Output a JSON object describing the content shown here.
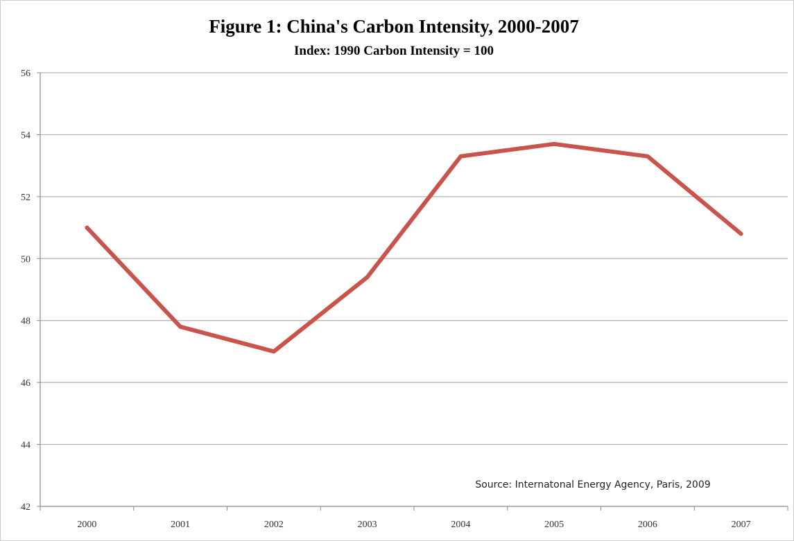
{
  "chart_data": {
    "type": "line",
    "title": "Figure 1: China's Carbon Intensity, 2000-2007",
    "subtitle": "Index: 1990 Carbon Intensity = 100",
    "xlabel": "",
    "ylabel": "",
    "categories": [
      "2000",
      "2001",
      "2002",
      "2003",
      "2004",
      "2005",
      "2006",
      "2007"
    ],
    "series": [
      {
        "values": [
          51.0,
          47.8,
          47.0,
          49.4,
          53.3,
          53.7,
          53.3,
          50.8
        ],
        "color": "#c9544c"
      }
    ],
    "ylim": [
      42,
      56
    ],
    "yticks": [
      42,
      44,
      46,
      48,
      50,
      52,
      54,
      56
    ],
    "grid": true,
    "legend": "none",
    "annotation": "Source: Internatonal Energy Agency, Paris, 2009"
  }
}
